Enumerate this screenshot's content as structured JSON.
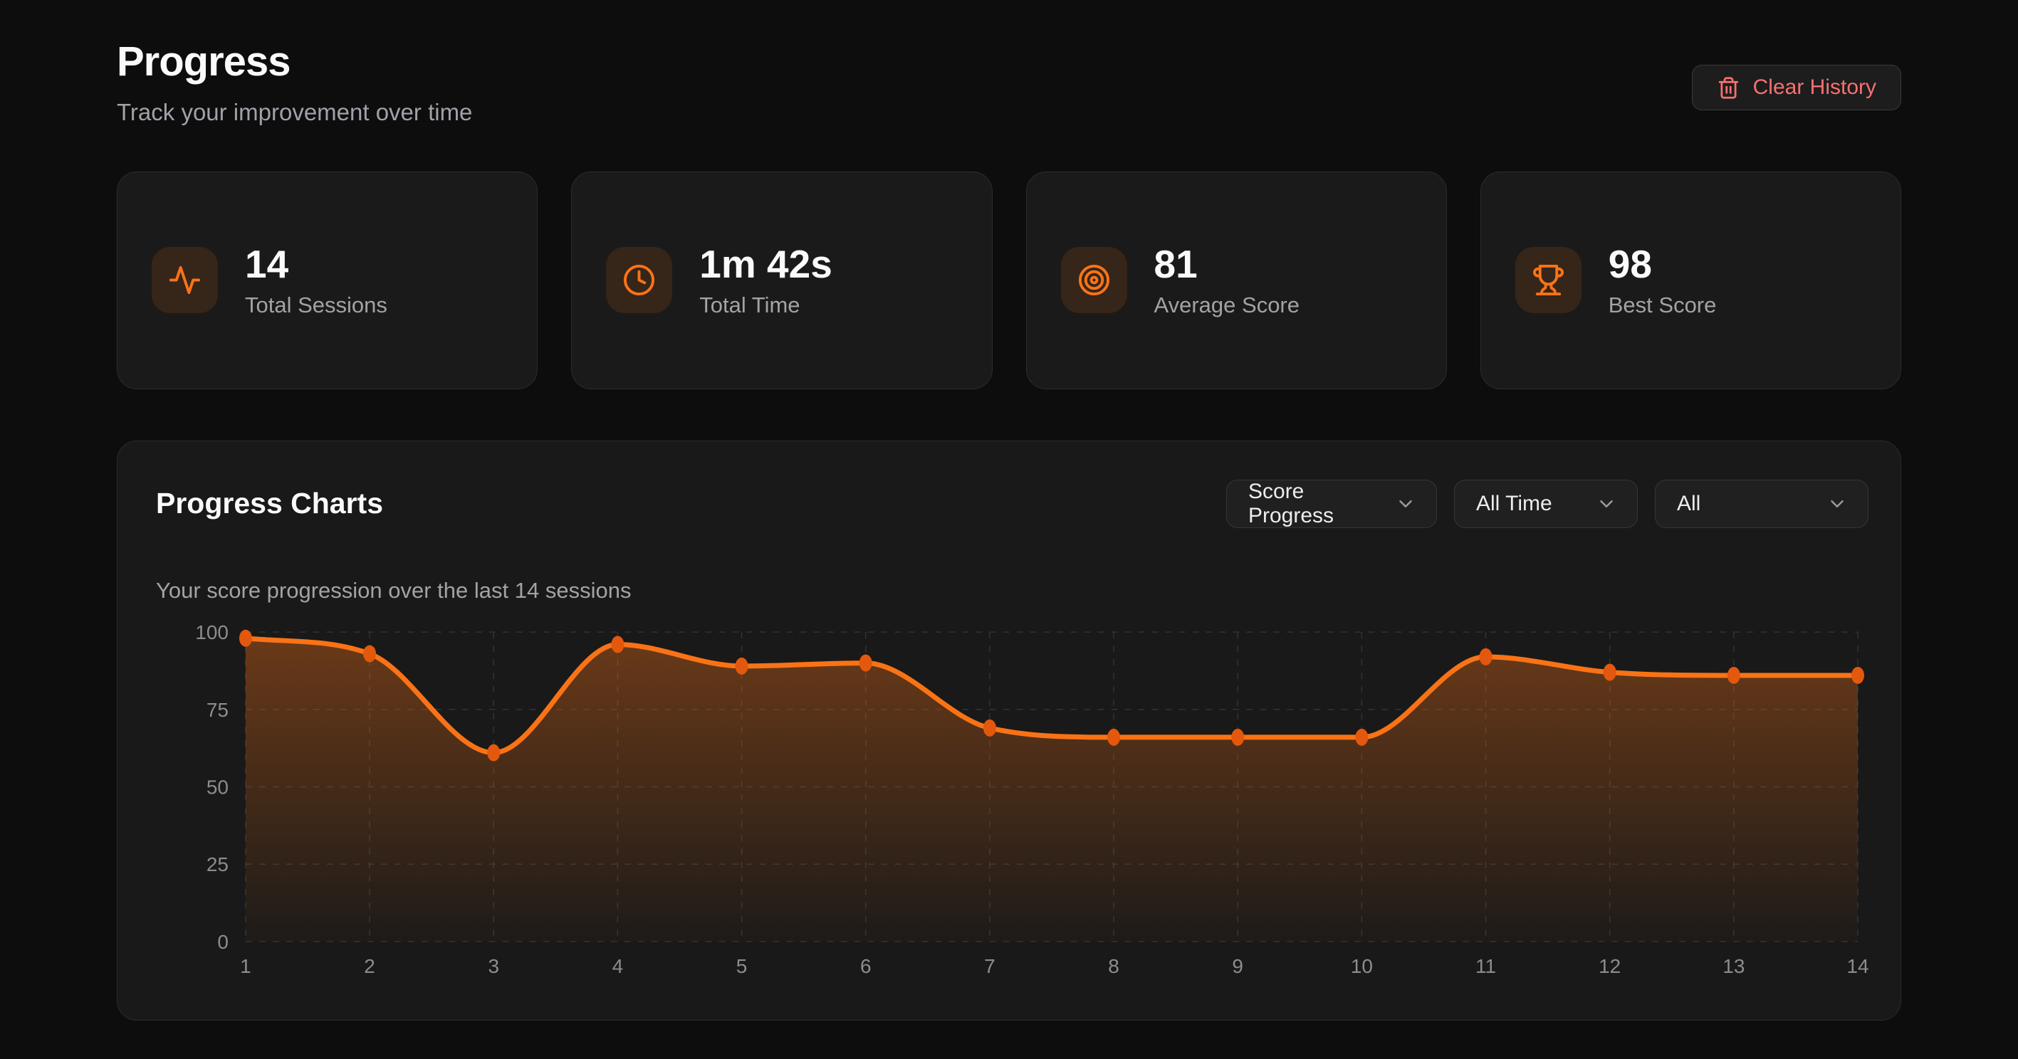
{
  "page": {
    "title": "Progress",
    "subtitle": "Track your improvement over time"
  },
  "header": {
    "clear_history_label": "Clear History",
    "clear_history_icon": "trash-icon",
    "danger_color": "#f87171"
  },
  "stats": [
    {
      "icon": "activity-icon",
      "value": "14",
      "label": "Total Sessions"
    },
    {
      "icon": "clock-icon",
      "value": "1m 42s",
      "label": "Total Time"
    },
    {
      "icon": "target-icon",
      "value": "81",
      "label": "Average Score"
    },
    {
      "icon": "trophy-icon",
      "value": "98",
      "label": "Best Score"
    }
  ],
  "charts_card": {
    "title": "Progress Charts",
    "subtitle": "Your score progression over the last 14 sessions",
    "filters": [
      {
        "value": "Score Progress",
        "icon": "chevron-down-icon"
      },
      {
        "value": "All Time",
        "icon": "chevron-down-icon"
      },
      {
        "value": "All",
        "icon": "chevron-down-icon"
      }
    ],
    "accent_color": "#f97316"
  },
  "chart_data": {
    "type": "area",
    "title": "Score Progress",
    "x": [
      1,
      2,
      3,
      4,
      5,
      6,
      7,
      8,
      9,
      10,
      11,
      12,
      13,
      14
    ],
    "series": [
      {
        "name": "Score",
        "values": [
          98,
          93,
          61,
          96,
          89,
          90,
          69,
          66,
          66,
          66,
          92,
          87,
          86,
          86
        ]
      }
    ],
    "xlabel": "",
    "ylabel": "",
    "ylim": [
      0,
      100
    ],
    "yticks": [
      0,
      25,
      50,
      75,
      100
    ],
    "grid": true,
    "legend": false,
    "line_color": "#f97316",
    "dot_color": "#e3580d",
    "grid_color": "#323232",
    "tick_color": "#8d8d8d",
    "fill_gradient_top": "rgba(249,115,22,0.36)",
    "fill_gradient_bottom": "rgba(249,115,22,0.02)"
  }
}
